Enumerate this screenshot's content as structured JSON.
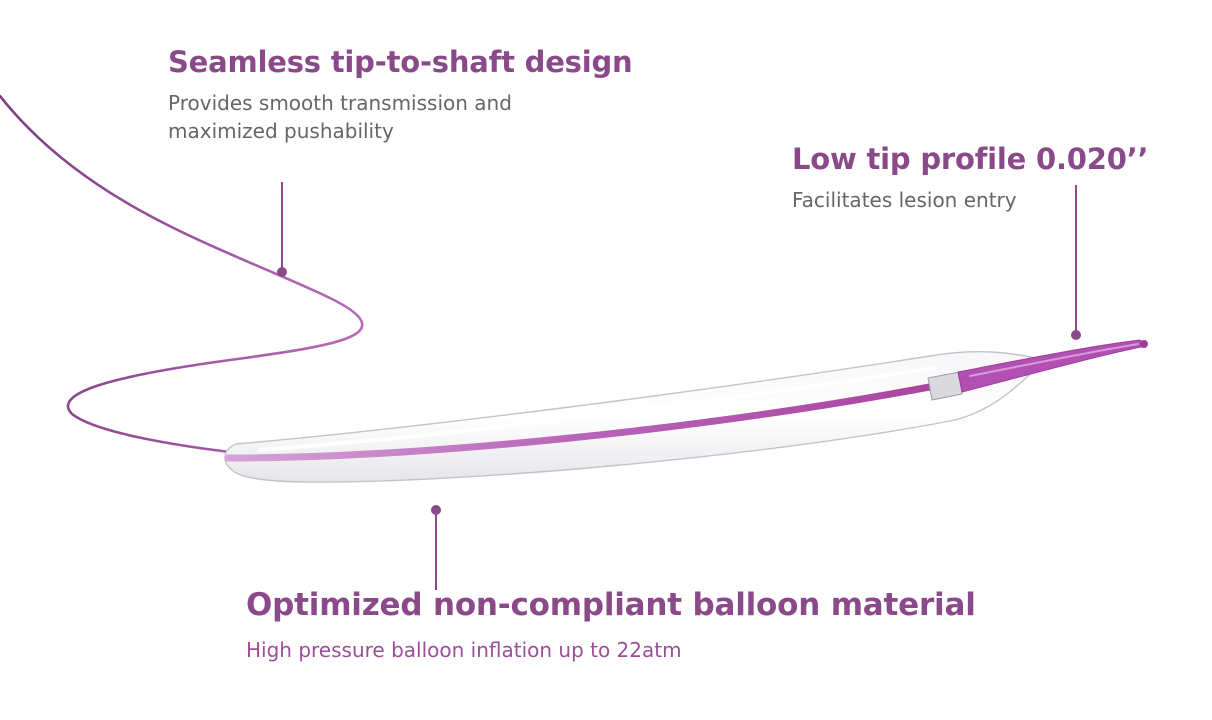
{
  "colors": {
    "accent": "#8a4a8a",
    "description_gray": "#666666",
    "description_purple": "#9a4f98",
    "catheter_magenta": "#b24fb3",
    "balloon_outline": "#bfbfc6"
  },
  "callouts": {
    "tip_shaft": {
      "title": "Seamless tip-to-shaft design",
      "description": "Provides smooth transmission and maximized pushability"
    },
    "tip_profile": {
      "title": "Low tip profile 0.020’’",
      "description": "Facilitates lesion entry"
    },
    "balloon": {
      "title": "Optimized non-compliant balloon material",
      "description": "High pressure balloon inflation up to 22atm"
    }
  }
}
